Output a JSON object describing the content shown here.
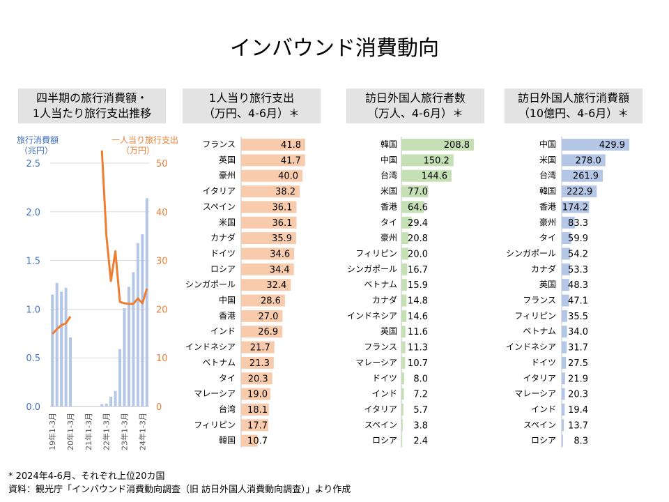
{
  "title": "インバウンド消費動向",
  "notes": [
    "* 2024年4-6月、それぞれ上位20カ国",
    "資料：観光庁「インバウンド消費動向調査（旧 訪日外国人消費動向調査）」より作成"
  ],
  "chart_data": [
    {
      "type": "bar+line",
      "title": "四半期の旅行消費額・\n1人当たり旅行支出推移",
      "ylabel": "旅行消費額\n（兆円）",
      "y2label": "一人当り旅行支出\n（万円）",
      "ylim": [
        0,
        2.5
      ],
      "y2lim": [
        0,
        50
      ],
      "yticks": [
        "0.0",
        "0.5",
        "1.0",
        "1.5",
        "2.0",
        "2.5"
      ],
      "y2ticks": [
        "0",
        "10",
        "20",
        "30",
        "40",
        "50"
      ],
      "grid": true,
      "categories": [
        "19Q1",
        "19Q2",
        "19Q3",
        "19Q4",
        "20Q1",
        "20Q2",
        "20Q3",
        "20Q4",
        "21Q1",
        "21Q2",
        "21Q3",
        "21Q4",
        "22Q1",
        "22Q2",
        "22Q3",
        "22Q4",
        "23Q1",
        "23Q2",
        "23Q3",
        "23Q4",
        "24Q1",
        "24Q2"
      ],
      "xticklabels": [
        "19年1-3月",
        "20年1-3月",
        "21年1-3月",
        "22年1-3月",
        "23年1-3月",
        "24年1-3月"
      ],
      "series": [
        {
          "name": "旅行消費額",
          "type": "bar",
          "color": "#b4c7e7",
          "values": [
            1.15,
            1.27,
            1.18,
            1.22,
            0.71,
            0,
            0,
            0,
            0,
            0,
            0,
            0.025,
            0.03,
            0.1,
            0.16,
            0.59,
            1.01,
            1.23,
            1.38,
            1.68,
            1.77,
            2.14
          ]
        },
        {
          "name": "一人当り旅行支出",
          "type": "line",
          "color": "#ed7d31",
          "values": [
            14.9,
            15.9,
            16.7,
            17.1,
            18.5,
            null,
            null,
            null,
            null,
            null,
            null,
            52.6,
            35.1,
            25.8,
            31.9,
            21.5,
            21.2,
            21.1,
            21.1,
            22.2,
            21.2,
            24.2
          ]
        }
      ]
    },
    {
      "type": "bar",
      "orientation": "horizontal",
      "title": "1人当り旅行支出\n（万円、4-6月）＊",
      "color": "#f8cbad",
      "categories": [
        "フランス",
        "英国",
        "豪州",
        "イタリア",
        "スペイン",
        "米国",
        "カナダ",
        "ドイツ",
        "ロシア",
        "シンガポール",
        "中国",
        "香港",
        "インド",
        "インドネシア",
        "ベトナム",
        "タイ",
        "マレーシア",
        "台湾",
        "フィリピン",
        "韓国"
      ],
      "values": [
        41.8,
        41.7,
        40.0,
        38.2,
        36.1,
        36.1,
        35.9,
        34.6,
        34.4,
        32.4,
        28.6,
        27.0,
        26.9,
        21.7,
        21.3,
        20.3,
        19.0,
        18.1,
        17.7,
        10.7
      ]
    },
    {
      "type": "bar",
      "orientation": "horizontal",
      "title": "訪日外国人旅行者数\n（万人、4-6月）＊",
      "color": "#c5e0b4",
      "categories": [
        "韓国",
        "中国",
        "台湾",
        "米国",
        "香港",
        "タイ",
        "豪州",
        "フィリピン",
        "シンガポール",
        "ベトナム",
        "カナダ",
        "インドネシア",
        "英国",
        "フランス",
        "マレーシア",
        "ドイツ",
        "インド",
        "イタリア",
        "スペイン",
        "ロシア"
      ],
      "values": [
        208.8,
        150.2,
        144.6,
        77.0,
        64.6,
        29.4,
        20.8,
        20.0,
        16.7,
        15.9,
        14.8,
        14.6,
        11.6,
        11.3,
        10.7,
        8.0,
        7.2,
        5.7,
        3.8,
        2.4
      ]
    },
    {
      "type": "bar",
      "orientation": "horizontal",
      "title": "訪日外国人旅行消費額\n（10億円、4-6月）＊",
      "color": "#b4c7e7",
      "categories": [
        "中国",
        "米国",
        "台湾",
        "韓国",
        "香港",
        "豪州",
        "タイ",
        "シンガポール",
        "カナダ",
        "英国",
        "フランス",
        "フィリピン",
        "ベトナム",
        "インドネシア",
        "ドイツ",
        "イタリア",
        "マレーシア",
        "インド",
        "スペイン",
        "ロシア"
      ],
      "values": [
        429.9,
        278.0,
        261.9,
        222.9,
        174.2,
        83.3,
        59.9,
        54.2,
        53.3,
        48.3,
        47.1,
        35.5,
        34.0,
        31.7,
        27.5,
        21.9,
        20.3,
        19.4,
        13.7,
        8.3
      ]
    }
  ]
}
